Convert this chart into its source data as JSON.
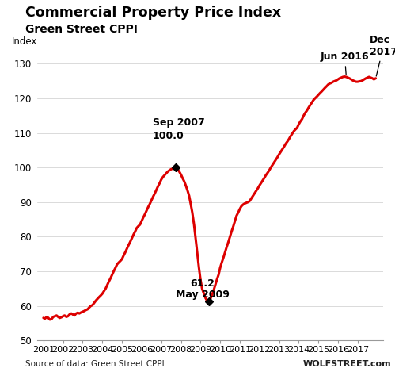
{
  "title": "Commercial Property Price Index",
  "subtitle": "Green Street CPPI",
  "ylabel": "Index",
  "source_left": "Source of data: Green Street CPPI",
  "source_right": "WOLFSTREET.com",
  "line_color": "#dd0000",
  "background_color": "#ffffff",
  "ylim": [
    50,
    135
  ],
  "yticks": [
    50,
    60,
    70,
    80,
    90,
    100,
    110,
    120,
    130
  ],
  "xtick_years": [
    2001,
    2002,
    2003,
    2004,
    2005,
    2006,
    2007,
    2008,
    2009,
    2010,
    2011,
    2012,
    2013,
    2014,
    2015,
    2016,
    2017
  ],
  "xlim": [
    2000.7,
    2018.3
  ],
  "data": [
    [
      2001.0,
      56.5
    ],
    [
      2001.08,
      56.3
    ],
    [
      2001.17,
      56.8
    ],
    [
      2001.25,
      56.5
    ],
    [
      2001.33,
      56.0
    ],
    [
      2001.42,
      56.2
    ],
    [
      2001.5,
      56.8
    ],
    [
      2001.58,
      57.0
    ],
    [
      2001.67,
      57.2
    ],
    [
      2001.75,
      56.8
    ],
    [
      2001.83,
      56.5
    ],
    [
      2001.92,
      56.7
    ],
    [
      2002.0,
      57.0
    ],
    [
      2002.08,
      57.2
    ],
    [
      2002.17,
      56.8
    ],
    [
      2002.25,
      57.0
    ],
    [
      2002.33,
      57.5
    ],
    [
      2002.42,
      57.8
    ],
    [
      2002.5,
      57.5
    ],
    [
      2002.58,
      57.2
    ],
    [
      2002.67,
      57.8
    ],
    [
      2002.75,
      58.0
    ],
    [
      2002.83,
      57.8
    ],
    [
      2002.92,
      58.1
    ],
    [
      2003.0,
      58.3
    ],
    [
      2003.08,
      58.5
    ],
    [
      2003.17,
      58.8
    ],
    [
      2003.25,
      59.0
    ],
    [
      2003.33,
      59.5
    ],
    [
      2003.42,
      60.0
    ],
    [
      2003.5,
      60.2
    ],
    [
      2003.58,
      60.8
    ],
    [
      2003.67,
      61.5
    ],
    [
      2003.75,
      62.0
    ],
    [
      2003.83,
      62.5
    ],
    [
      2003.92,
      63.0
    ],
    [
      2004.0,
      63.5
    ],
    [
      2004.08,
      64.2
    ],
    [
      2004.17,
      65.0
    ],
    [
      2004.25,
      66.0
    ],
    [
      2004.33,
      67.0
    ],
    [
      2004.42,
      68.0
    ],
    [
      2004.5,
      69.0
    ],
    [
      2004.58,
      70.0
    ],
    [
      2004.67,
      71.0
    ],
    [
      2004.75,
      72.0
    ],
    [
      2004.83,
      72.5
    ],
    [
      2004.92,
      73.0
    ],
    [
      2005.0,
      73.5
    ],
    [
      2005.08,
      74.5
    ],
    [
      2005.17,
      75.5
    ],
    [
      2005.25,
      76.5
    ],
    [
      2005.33,
      77.5
    ],
    [
      2005.42,
      78.5
    ],
    [
      2005.5,
      79.5
    ],
    [
      2005.58,
      80.5
    ],
    [
      2005.67,
      81.5
    ],
    [
      2005.75,
      82.5
    ],
    [
      2005.83,
      83.0
    ],
    [
      2005.92,
      83.5
    ],
    [
      2006.0,
      84.5
    ],
    [
      2006.08,
      85.5
    ],
    [
      2006.17,
      86.5
    ],
    [
      2006.25,
      87.5
    ],
    [
      2006.33,
      88.5
    ],
    [
      2006.42,
      89.5
    ],
    [
      2006.5,
      90.5
    ],
    [
      2006.58,
      91.5
    ],
    [
      2006.67,
      92.5
    ],
    [
      2006.75,
      93.5
    ],
    [
      2006.83,
      94.5
    ],
    [
      2006.92,
      95.5
    ],
    [
      2007.0,
      96.5
    ],
    [
      2007.08,
      97.2
    ],
    [
      2007.17,
      97.8
    ],
    [
      2007.25,
      98.3
    ],
    [
      2007.33,
      98.8
    ],
    [
      2007.42,
      99.2
    ],
    [
      2007.5,
      99.5
    ],
    [
      2007.58,
      99.7
    ],
    [
      2007.67,
      99.9
    ],
    [
      2007.75,
      100.0
    ],
    [
      2007.83,
      99.5
    ],
    [
      2007.92,
      98.8
    ],
    [
      2008.0,
      98.0
    ],
    [
      2008.08,
      97.0
    ],
    [
      2008.17,
      96.0
    ],
    [
      2008.25,
      94.8
    ],
    [
      2008.33,
      93.5
    ],
    [
      2008.42,
      91.8
    ],
    [
      2008.5,
      89.5
    ],
    [
      2008.58,
      87.0
    ],
    [
      2008.67,
      83.5
    ],
    [
      2008.75,
      79.5
    ],
    [
      2008.83,
      75.5
    ],
    [
      2008.92,
      71.0
    ],
    [
      2009.0,
      67.5
    ],
    [
      2009.08,
      65.0
    ],
    [
      2009.17,
      63.5
    ],
    [
      2009.25,
      62.3
    ],
    [
      2009.33,
      61.5
    ],
    [
      2009.42,
      61.2
    ],
    [
      2009.5,
      62.0
    ],
    [
      2009.58,
      63.0
    ],
    [
      2009.67,
      64.5
    ],
    [
      2009.75,
      66.0
    ],
    [
      2009.83,
      67.5
    ],
    [
      2009.92,
      69.0
    ],
    [
      2010.0,
      71.0
    ],
    [
      2010.08,
      72.5
    ],
    [
      2010.17,
      74.0
    ],
    [
      2010.25,
      75.5
    ],
    [
      2010.33,
      77.0
    ],
    [
      2010.42,
      78.5
    ],
    [
      2010.5,
      80.0
    ],
    [
      2010.58,
      81.5
    ],
    [
      2010.67,
      83.0
    ],
    [
      2010.75,
      84.5
    ],
    [
      2010.83,
      86.0
    ],
    [
      2010.92,
      87.0
    ],
    [
      2011.0,
      88.0
    ],
    [
      2011.08,
      88.8
    ],
    [
      2011.17,
      89.3
    ],
    [
      2011.25,
      89.6
    ],
    [
      2011.33,
      89.8
    ],
    [
      2011.42,
      90.0
    ],
    [
      2011.5,
      90.3
    ],
    [
      2011.58,
      91.0
    ],
    [
      2011.67,
      91.8
    ],
    [
      2011.75,
      92.5
    ],
    [
      2011.83,
      93.2
    ],
    [
      2011.92,
      94.0
    ],
    [
      2012.0,
      94.8
    ],
    [
      2012.08,
      95.5
    ],
    [
      2012.17,
      96.3
    ],
    [
      2012.25,
      97.0
    ],
    [
      2012.33,
      97.8
    ],
    [
      2012.42,
      98.5
    ],
    [
      2012.5,
      99.2
    ],
    [
      2012.58,
      100.0
    ],
    [
      2012.67,
      100.8
    ],
    [
      2012.75,
      101.5
    ],
    [
      2012.83,
      102.2
    ],
    [
      2012.92,
      103.0
    ],
    [
      2013.0,
      103.8
    ],
    [
      2013.08,
      104.5
    ],
    [
      2013.17,
      105.3
    ],
    [
      2013.25,
      106.0
    ],
    [
      2013.33,
      106.8
    ],
    [
      2013.42,
      107.5
    ],
    [
      2013.5,
      108.2
    ],
    [
      2013.58,
      109.0
    ],
    [
      2013.67,
      109.8
    ],
    [
      2013.75,
      110.5
    ],
    [
      2013.83,
      111.0
    ],
    [
      2013.92,
      111.5
    ],
    [
      2014.0,
      112.5
    ],
    [
      2014.08,
      113.3
    ],
    [
      2014.17,
      114.0
    ],
    [
      2014.25,
      115.0
    ],
    [
      2014.33,
      115.8
    ],
    [
      2014.42,
      116.5
    ],
    [
      2014.5,
      117.3
    ],
    [
      2014.58,
      118.0
    ],
    [
      2014.67,
      118.8
    ],
    [
      2014.75,
      119.5
    ],
    [
      2014.83,
      120.0
    ],
    [
      2014.92,
      120.5
    ],
    [
      2015.0,
      121.0
    ],
    [
      2015.08,
      121.5
    ],
    [
      2015.17,
      122.0
    ],
    [
      2015.25,
      122.5
    ],
    [
      2015.33,
      123.0
    ],
    [
      2015.42,
      123.5
    ],
    [
      2015.5,
      124.0
    ],
    [
      2015.58,
      124.3
    ],
    [
      2015.67,
      124.5
    ],
    [
      2015.75,
      124.8
    ],
    [
      2015.83,
      125.0
    ],
    [
      2015.92,
      125.2
    ],
    [
      2016.0,
      125.5
    ],
    [
      2016.08,
      125.8
    ],
    [
      2016.17,
      126.0
    ],
    [
      2016.25,
      126.2
    ],
    [
      2016.33,
      126.3
    ],
    [
      2016.42,
      126.2
    ],
    [
      2016.5,
      126.0
    ],
    [
      2016.58,
      125.8
    ],
    [
      2016.67,
      125.5
    ],
    [
      2016.75,
      125.2
    ],
    [
      2016.83,
      125.0
    ],
    [
      2016.92,
      124.8
    ],
    [
      2017.0,
      124.8
    ],
    [
      2017.08,
      124.9
    ],
    [
      2017.17,
      125.0
    ],
    [
      2017.25,
      125.2
    ],
    [
      2017.33,
      125.5
    ],
    [
      2017.42,
      125.8
    ],
    [
      2017.5,
      126.0
    ],
    [
      2017.58,
      126.2
    ],
    [
      2017.67,
      126.0
    ],
    [
      2017.75,
      125.8
    ],
    [
      2017.83,
      125.5
    ],
    [
      2017.92,
      125.8
    ]
  ]
}
